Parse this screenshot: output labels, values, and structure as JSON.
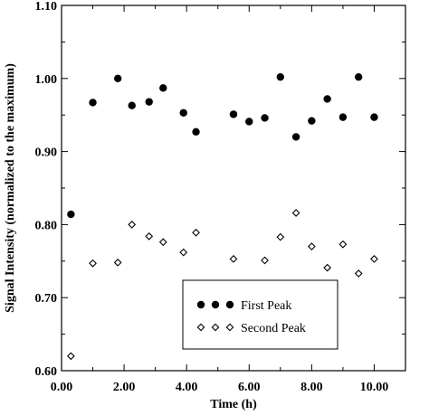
{
  "chart_data": {
    "type": "scatter",
    "xlabel": "Time (h)",
    "ylabel": "Signal Intensity (normalized to the maximum)",
    "xlim": [
      0,
      11
    ],
    "ylim": [
      0.6,
      1.1
    ],
    "x_ticks": [
      "0.00",
      "2.00",
      "4.00",
      "6.00",
      "8.00",
      "10.00"
    ],
    "y_ticks": [
      "0.60",
      "0.70",
      "0.80",
      "0.90",
      "1.00",
      "1.10"
    ],
    "legend_placement": "bottom-center",
    "grid": false,
    "series": [
      {
        "name": "First Peak",
        "marker": "filled-circle",
        "color": "#000000",
        "x": [
          0.3,
          1.0,
          1.8,
          2.25,
          2.8,
          3.25,
          3.9,
          4.3,
          5.5,
          6.0,
          6.5,
          7.0,
          7.5,
          8.0,
          8.5,
          9.0,
          9.5,
          10.0
        ],
        "y": [
          0.814,
          0.967,
          1.0,
          0.963,
          0.968,
          0.987,
          0.953,
          0.927,
          0.951,
          0.941,
          0.946,
          1.002,
          0.92,
          0.942,
          0.972,
          0.947,
          1.002,
          0.947
        ]
      },
      {
        "name": "Second Peak",
        "marker": "open-diamond",
        "color": "#000000",
        "x": [
          0.3,
          1.0,
          1.8,
          2.25,
          2.8,
          3.25,
          3.9,
          4.3,
          5.5,
          6.5,
          7.0,
          7.5,
          8.0,
          8.5,
          9.0,
          9.5,
          10.0
        ],
        "y": [
          0.62,
          0.747,
          0.748,
          0.8,
          0.784,
          0.776,
          0.762,
          0.789,
          0.753,
          0.751,
          0.783,
          0.816,
          0.77,
          0.741,
          0.773,
          0.733,
          0.753
        ]
      }
    ]
  }
}
